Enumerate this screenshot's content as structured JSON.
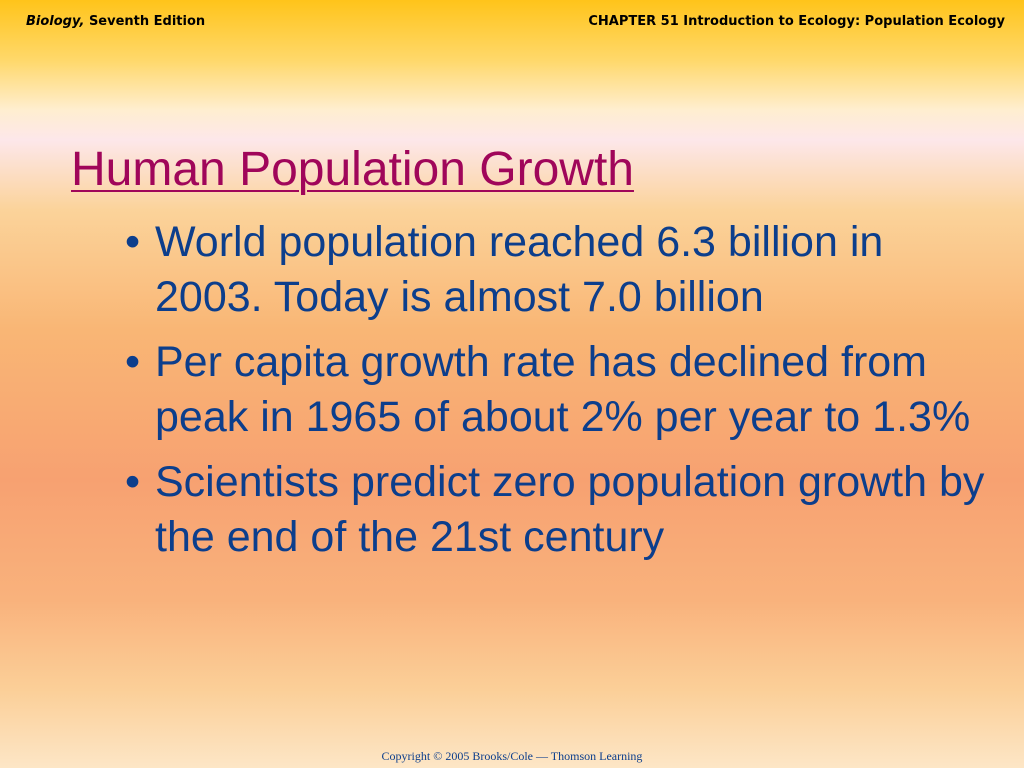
{
  "header": {
    "book_title": "Biology,",
    "edition": "Seventh Edition",
    "chapter": "CHAPTER 51 Introduction to Ecology: Population Ecology"
  },
  "slide": {
    "title": "Human Population Growth",
    "bullet_glyph": "•",
    "bullets": [
      "World population reached 6.3 billion in 2003. Today is almost 7.0 billion",
      "Per capita growth rate has declined from peak in 1965 of about 2% per year to 1.3%",
      "Scientists predict zero population growth by the end of the 21st century"
    ]
  },
  "footer": {
    "copyright": "Copyright © 2005 Brooks/Cole — Thomson Learning"
  },
  "colors": {
    "title": "#a0065a",
    "body_text": "#0c3e8c",
    "header_text": "#000000"
  }
}
